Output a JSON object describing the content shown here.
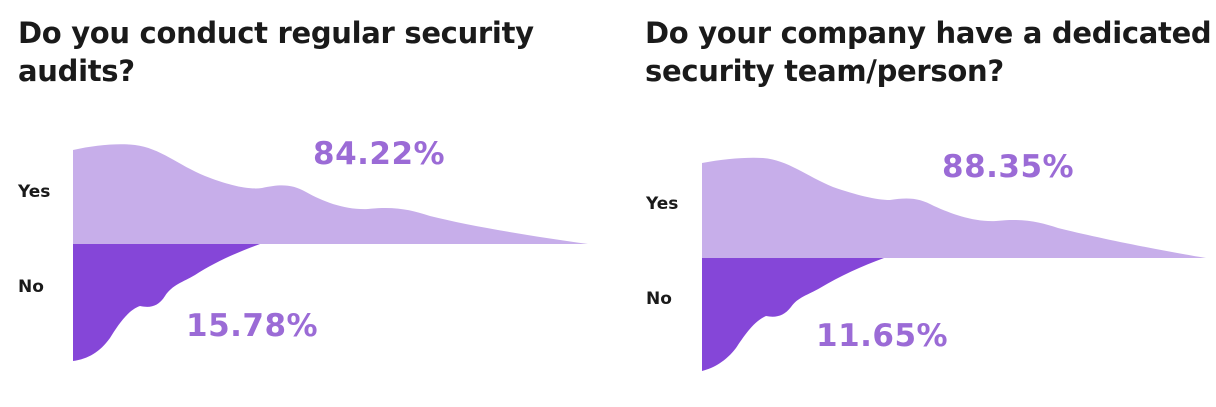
{
  "colors": {
    "yes": "#c7aeea",
    "no": "#8546d8",
    "label": "#9b6bd6",
    "text": "#1a1a1a"
  },
  "chart_data": [
    {
      "type": "area",
      "title": "Do you conduct regular security audits?",
      "categories": [
        "Yes",
        "No"
      ],
      "values": [
        84.22,
        15.78
      ],
      "value_labels": [
        "84.22%",
        "15.78%"
      ]
    },
    {
      "type": "area",
      "title": "Do your company have a dedicated security team/person?",
      "categories": [
        "Yes",
        "No"
      ],
      "values": [
        88.35,
        11.65
      ],
      "value_labels": [
        "88.35%",
        "11.65%"
      ]
    }
  ]
}
